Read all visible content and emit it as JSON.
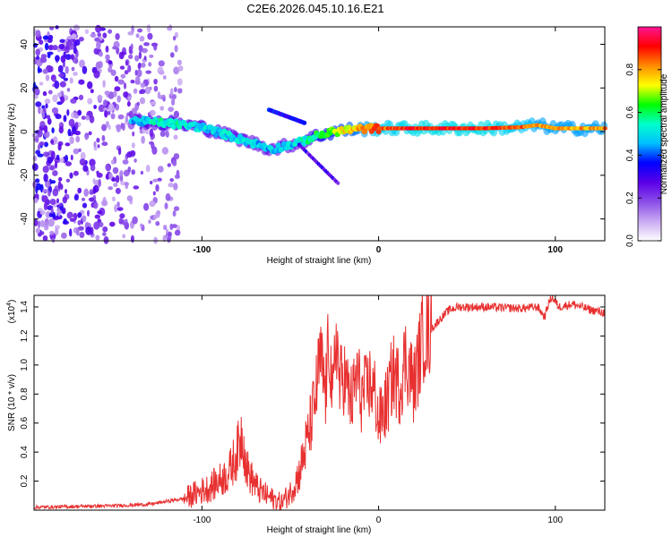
{
  "title": "C2E6.2026.045.10.16.E21",
  "chart_data": [
    {
      "type": "heatmap",
      "name": "spectrogram",
      "xlabel": "Height of straight line (km)",
      "ylabel": "Frequency (Hz)",
      "xlim": [
        -195,
        128
      ],
      "ylim": [
        -50,
        48
      ],
      "xticks": [
        -100,
        0,
        100
      ],
      "yticks": [
        -40,
        -20,
        0,
        20,
        40
      ],
      "colorbar": {
        "label": "Normalized spectral amplitude",
        "range": [
          0,
          1
        ],
        "ticks": [
          0.0,
          0.2,
          0.4,
          0.6,
          0.8
        ],
        "colors": [
          "#ffffff",
          "#c9a9f3",
          "#8a4de8",
          "#5b00e8",
          "#0000ff",
          "#00bfff",
          "#00ffcc",
          "#00ff00",
          "#ffff00",
          "#ff8c00",
          "#ff0000",
          "#ff1493"
        ]
      },
      "ridge": {
        "x": [
          -140,
          -120,
          -100,
          -80,
          -60,
          -45,
          -35,
          -25,
          -15,
          0,
          20,
          40,
          60,
          80,
          90,
          100,
          128
        ],
        "freq": [
          5,
          4,
          2,
          -3,
          -8,
          -5,
          -2,
          0,
          1,
          1.5,
          1.5,
          1.5,
          1.5,
          2,
          3,
          1.5,
          1.5
        ],
        "amp": [
          0.45,
          0.55,
          0.5,
          0.5,
          0.45,
          0.5,
          0.6,
          0.7,
          0.75,
          0.85,
          0.9,
          0.9,
          0.9,
          0.85,
          0.8,
          0.8,
          0.8
        ]
      },
      "noise_region": {
        "x_range": [
          -195,
          -112
        ],
        "freq_range": [
          -50,
          48
        ],
        "amp_range": [
          0.08,
          0.38
        ]
      }
    },
    {
      "type": "line",
      "name": "snr",
      "xlabel": "Height of straight line (km)",
      "ylabel": "SNR (10 * v/v)",
      "yscale_label": "(x10",
      "yscale_exponent": "4",
      "xlim": [
        -195,
        128
      ],
      "ylim": [
        0,
        1.48
      ],
      "xticks": [
        -100,
        0,
        100
      ],
      "yticks": [
        0.2,
        0.4,
        0.6,
        0.8,
        1.0,
        1.2,
        1.4
      ],
      "color": "#e83030",
      "x": [
        -195,
        -150,
        -130,
        -110,
        -95,
        -85,
        -80,
        -77,
        -75,
        -72,
        -68,
        -62,
        -55,
        -50,
        -45,
        -40,
        -36,
        -33,
        -30,
        -28,
        -26,
        -24,
        -22,
        -20,
        -17,
        -15,
        -12,
        -10,
        -7,
        -5,
        -2,
        0,
        5,
        8,
        12,
        15,
        18,
        20,
        25,
        30,
        35,
        40,
        45,
        60,
        80,
        90,
        94,
        96,
        98,
        102,
        110,
        120,
        128
      ],
      "y": [
        0.02,
        0.03,
        0.04,
        0.08,
        0.16,
        0.25,
        0.4,
        0.55,
        0.3,
        0.22,
        0.14,
        0.09,
        0.05,
        0.12,
        0.25,
        0.5,
        0.75,
        1.05,
        0.8,
        1.2,
        0.7,
        1.25,
        0.85,
        0.95,
        0.8,
        0.75,
        0.95,
        0.78,
        0.82,
        0.88,
        0.8,
        0.6,
        0.75,
        0.95,
        0.85,
        1.05,
        0.95,
        0.85,
        1.2,
        1.25,
        1.32,
        1.38,
        1.4,
        1.4,
        1.39,
        1.4,
        1.33,
        1.42,
        1.47,
        1.4,
        1.42,
        1.38,
        1.36
      ]
    }
  ]
}
